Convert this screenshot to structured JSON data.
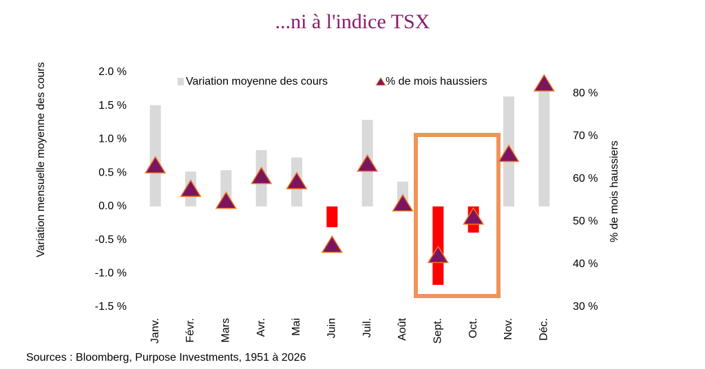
{
  "chart_data": {
    "type": "combo",
    "title": "...ni à l'indice TSX",
    "source": "Sources : Bloomberg, Purpose Investments, 1951 à 2026",
    "y_label": "Variation mensuelle moyenne des cours",
    "y2_label": "% de mois haussiers",
    "categories": [
      "Janv.",
      "Févr.",
      "Mars",
      "Avr.",
      "Mai",
      "Juin",
      "Juil.",
      "Août",
      "Sept.",
      "Oct.",
      "Nov.",
      "Déc."
    ],
    "ylim": [
      -1.5,
      2.0
    ],
    "yticks": [
      {
        "value": -1.5,
        "label": "-1.5 %"
      },
      {
        "value": -1.0,
        "label": "-1.0 %"
      },
      {
        "value": -0.5,
        "label": "-0.5 %"
      },
      {
        "value": 0,
        "label": "0.0 %"
      },
      {
        "value": 0.5,
        "label": "0.5 %"
      },
      {
        "value": 1.0,
        "label": "1.0 %"
      },
      {
        "value": 1.5,
        "label": "1.5 %"
      },
      {
        "value": 2.0,
        "label": "2.0 %"
      }
    ],
    "y2lim": [
      30,
      85
    ],
    "y2ticks": [
      {
        "value": 30,
        "label": "30 %"
      },
      {
        "value": 40,
        "label": "40 %"
      },
      {
        "value": 50,
        "label": "50 %"
      },
      {
        "value": 60,
        "label": "60 %"
      },
      {
        "value": 70,
        "label": "70 %"
      },
      {
        "value": 80,
        "label": "80 %"
      }
    ],
    "series": [
      {
        "name": "Variation moyenne des cours",
        "type": "bar",
        "color": "#d9d9d9",
        "negative_color": "#ff0000",
        "values": [
          1.51,
          0.52,
          0.54,
          0.84,
          0.73,
          -0.31,
          1.29,
          0.37,
          -1.17,
          -0.39,
          1.64,
          1.75
        ]
      },
      {
        "name": "% de mois haussiers",
        "type": "marker",
        "axis": "y2",
        "color": "#7b1560",
        "edge_color": "#f07820",
        "values": [
          63.1,
          57.6,
          54.8,
          60.6,
          59.4,
          44.5,
          63.5,
          54.2,
          42.1,
          51.1,
          65.8,
          82.3
        ]
      }
    ]
  }
}
